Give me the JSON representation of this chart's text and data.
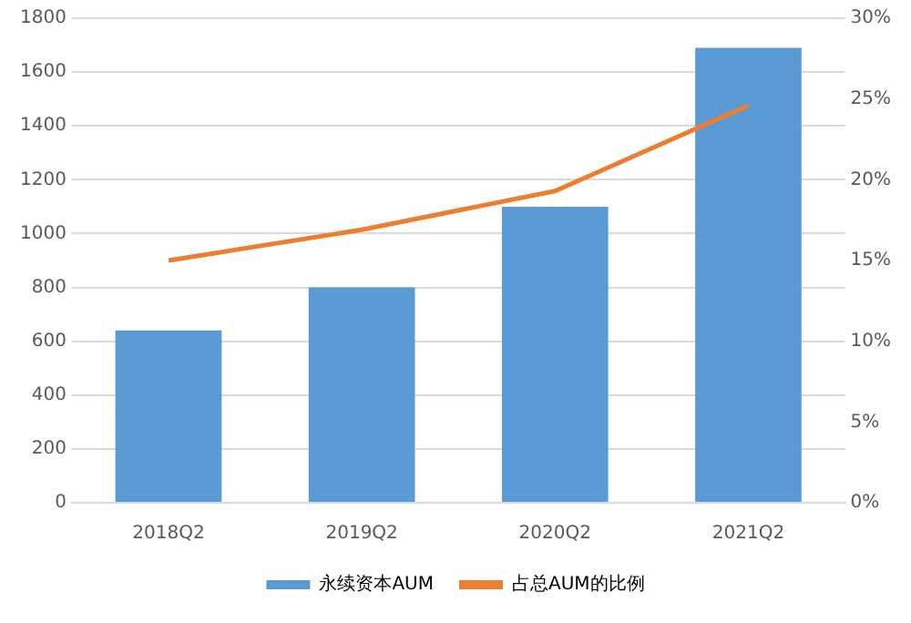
{
  "chart_data": {
    "type": "bar",
    "categories": [
      "2018Q2",
      "2019Q2",
      "2020Q2",
      "2021Q2"
    ],
    "series": [
      {
        "name": "永续资本AUM",
        "color": "#5b9bd5",
        "values": [
          640,
          800,
          1100,
          1690
        ]
      },
      {
        "name": "占总AUM的比例",
        "type": "line",
        "axis": "y2",
        "color": "#ed7d31",
        "values": [
          15.0,
          16.9,
          19.3,
          24.6
        ]
      }
    ],
    "ylim": [
      0,
      1800
    ],
    "yticks": [
      0,
      200,
      400,
      600,
      800,
      1000,
      1200,
      1400,
      1600,
      1800
    ],
    "y2lim": [
      0,
      30
    ],
    "y2ticks": [
      {
        "value": 0,
        "label": "0%"
      },
      {
        "value": 5,
        "label": "5%"
      },
      {
        "value": 10,
        "label": "10%"
      },
      {
        "value": 15,
        "label": "15%"
      },
      {
        "value": 20,
        "label": "20%"
      },
      {
        "value": 25,
        "label": "25%"
      },
      {
        "value": 30,
        "label": "30%"
      }
    ],
    "grid": "y",
    "legend": "bottom",
    "marker": "none"
  }
}
